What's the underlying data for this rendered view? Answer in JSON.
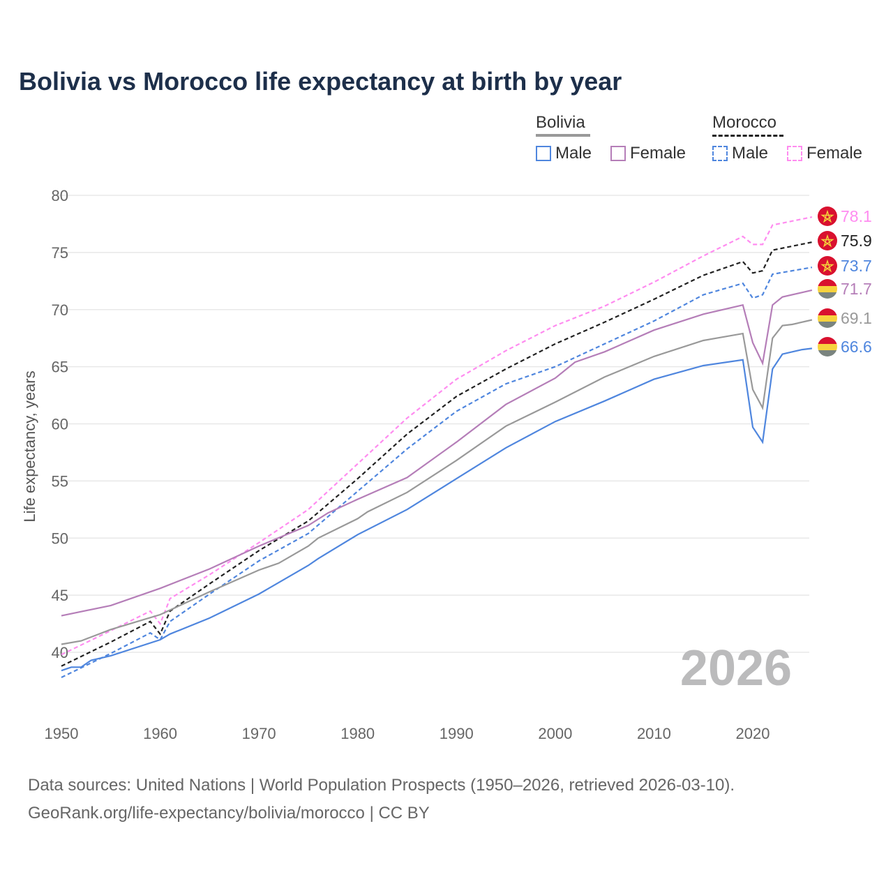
{
  "title": "Bolivia vs Morocco life expectancy at birth by year",
  "legend": {
    "groups": [
      {
        "label": "Bolivia",
        "color": "#999999",
        "dashed": false
      },
      {
        "label": "Morocco",
        "color": "#222222",
        "dashed": true
      }
    ],
    "items": [
      {
        "label": "Male",
        "color": "#4f86de",
        "dashed": false
      },
      {
        "label": "Female",
        "color": "#b57eb8",
        "dashed": false
      },
      {
        "label": "Male",
        "color": "#4f86de",
        "dashed": true
      },
      {
        "label": "Female",
        "color": "#ff8cf0",
        "dashed": true
      }
    ]
  },
  "year_watermark": "2026",
  "footer": {
    "line1": "Data sources: United Nations | World Population Prospects (1950–2026, retrieved 2026-03-10).",
    "line2": "GeoRank.org/life-expectancy/bolivia/morocco | CC BY"
  },
  "chart_data": {
    "type": "line",
    "title": "Bolivia vs Morocco life expectancy at birth by year",
    "xlabel": "",
    "ylabel": "Life expectancy, years",
    "xlim": [
      1950,
      2026
    ],
    "ylim": [
      36,
      80
    ],
    "xticks": [
      "1950",
      "1960",
      "1970",
      "1980",
      "1990",
      "2000",
      "2010",
      "2020"
    ],
    "yticks": [
      "40",
      "45",
      "50",
      "55",
      "60",
      "65",
      "70",
      "75",
      "80"
    ],
    "grid": true,
    "series": [
      {
        "name": "Morocco Female",
        "country": "Morocco",
        "color": "#ff8cf0",
        "dashed": true,
        "end_label": "78.1",
        "points": [
          [
            1950,
            39.8
          ],
          [
            1955,
            41.9
          ],
          [
            1959,
            43.6
          ],
          [
            1960,
            42.5
          ],
          [
            1961,
            44.7
          ],
          [
            1965,
            46.8
          ],
          [
            1970,
            49.6
          ],
          [
            1975,
            52.5
          ],
          [
            1980,
            56.5
          ],
          [
            1985,
            60.5
          ],
          [
            1990,
            63.9
          ],
          [
            1995,
            66.4
          ],
          [
            2000,
            68.6
          ],
          [
            2005,
            70.3
          ],
          [
            2010,
            72.4
          ],
          [
            2015,
            74.7
          ],
          [
            2019,
            76.4
          ],
          [
            2020,
            75.7
          ],
          [
            2021,
            75.7
          ],
          [
            2022,
            77.4
          ],
          [
            2026,
            78.1
          ]
        ]
      },
      {
        "name": "Morocco",
        "country": "Morocco",
        "color": "#222222",
        "dashed": true,
        "end_label": "75.9",
        "points": [
          [
            1950,
            38.8
          ],
          [
            1955,
            40.9
          ],
          [
            1959,
            42.7
          ],
          [
            1960,
            41.6
          ],
          [
            1961,
            43.6
          ],
          [
            1965,
            46.0
          ],
          [
            1970,
            48.9
          ],
          [
            1975,
            51.5
          ],
          [
            1980,
            55.2
          ],
          [
            1985,
            59.1
          ],
          [
            1990,
            62.4
          ],
          [
            1995,
            64.8
          ],
          [
            2000,
            67.0
          ],
          [
            2005,
            68.9
          ],
          [
            2010,
            70.9
          ],
          [
            2015,
            73.0
          ],
          [
            2019,
            74.2
          ],
          [
            2020,
            73.2
          ],
          [
            2021,
            73.4
          ],
          [
            2022,
            75.2
          ],
          [
            2026,
            75.9
          ]
        ]
      },
      {
        "name": "Morocco Male",
        "country": "Morocco",
        "color": "#4f86de",
        "dashed": true,
        "end_label": "73.7",
        "points": [
          [
            1950,
            37.8
          ],
          [
            1955,
            39.9
          ],
          [
            1959,
            41.7
          ],
          [
            1960,
            41.1
          ],
          [
            1961,
            42.7
          ],
          [
            1965,
            45.1
          ],
          [
            1970,
            48.0
          ],
          [
            1975,
            50.4
          ],
          [
            1980,
            54.1
          ],
          [
            1985,
            57.8
          ],
          [
            1990,
            61.1
          ],
          [
            1995,
            63.5
          ],
          [
            2000,
            65.0
          ],
          [
            2005,
            67.0
          ],
          [
            2010,
            69.0
          ],
          [
            2015,
            71.3
          ],
          [
            2019,
            72.3
          ],
          [
            2020,
            71.0
          ],
          [
            2021,
            71.3
          ],
          [
            2022,
            73.1
          ],
          [
            2026,
            73.7
          ]
        ]
      },
      {
        "name": "Bolivia Female",
        "country": "Bolivia",
        "color": "#b57eb8",
        "dashed": false,
        "end_label": "71.7",
        "points": [
          [
            1950,
            43.2
          ],
          [
            1955,
            44.1
          ],
          [
            1960,
            45.6
          ],
          [
            1965,
            47.3
          ],
          [
            1970,
            49.3
          ],
          [
            1975,
            51.1
          ],
          [
            1977,
            52.2
          ],
          [
            1980,
            53.4
          ],
          [
            1985,
            55.3
          ],
          [
            1990,
            58.4
          ],
          [
            1995,
            61.7
          ],
          [
            2000,
            64.0
          ],
          [
            2002,
            65.4
          ],
          [
            2005,
            66.3
          ],
          [
            2010,
            68.2
          ],
          [
            2015,
            69.6
          ],
          [
            2019,
            70.4
          ],
          [
            2020,
            67.1
          ],
          [
            2021,
            65.3
          ],
          [
            2022,
            70.4
          ],
          [
            2023,
            71.1
          ],
          [
            2026,
            71.7
          ]
        ]
      },
      {
        "name": "Bolivia",
        "country": "Bolivia",
        "color": "#999999",
        "dashed": false,
        "end_label": "69.1",
        "points": [
          [
            1950,
            40.7
          ],
          [
            1952,
            41.0
          ],
          [
            1955,
            42.0
          ],
          [
            1960,
            43.3
          ],
          [
            1965,
            45.3
          ],
          [
            1970,
            47.2
          ],
          [
            1972,
            47.8
          ],
          [
            1975,
            49.3
          ],
          [
            1976,
            50.0
          ],
          [
            1980,
            51.7
          ],
          [
            1981,
            52.3
          ],
          [
            1985,
            54.0
          ],
          [
            1990,
            56.8
          ],
          [
            1995,
            59.8
          ],
          [
            2000,
            61.9
          ],
          [
            2005,
            64.1
          ],
          [
            2010,
            65.9
          ],
          [
            2015,
            67.3
          ],
          [
            2019,
            67.9
          ],
          [
            2020,
            63.0
          ],
          [
            2021,
            61.4
          ],
          [
            2022,
            67.5
          ],
          [
            2023,
            68.6
          ],
          [
            2024,
            68.7
          ],
          [
            2026,
            69.1
          ]
        ]
      },
      {
        "name": "Bolivia Male",
        "country": "Bolivia",
        "color": "#4f86de",
        "dashed": false,
        "end_label": "66.6",
        "points": [
          [
            1950,
            38.4
          ],
          [
            1951,
            38.7
          ],
          [
            1952,
            38.7
          ],
          [
            1953,
            39.3
          ],
          [
            1955,
            39.7
          ],
          [
            1960,
            41.1
          ],
          [
            1961,
            41.6
          ],
          [
            1965,
            43.0
          ],
          [
            1970,
            45.1
          ],
          [
            1975,
            47.6
          ],
          [
            1976,
            48.2
          ],
          [
            1980,
            50.3
          ],
          [
            1985,
            52.5
          ],
          [
            1990,
            55.2
          ],
          [
            1995,
            57.9
          ],
          [
            2000,
            60.2
          ],
          [
            2005,
            62.0
          ],
          [
            2010,
            63.9
          ],
          [
            2015,
            65.1
          ],
          [
            2019,
            65.6
          ],
          [
            2020,
            59.7
          ],
          [
            2021,
            58.4
          ],
          [
            2022,
            64.8
          ],
          [
            2023,
            66.1
          ],
          [
            2024,
            66.3
          ],
          [
            2025,
            66.5
          ],
          [
            2026,
            66.6
          ]
        ]
      }
    ]
  }
}
